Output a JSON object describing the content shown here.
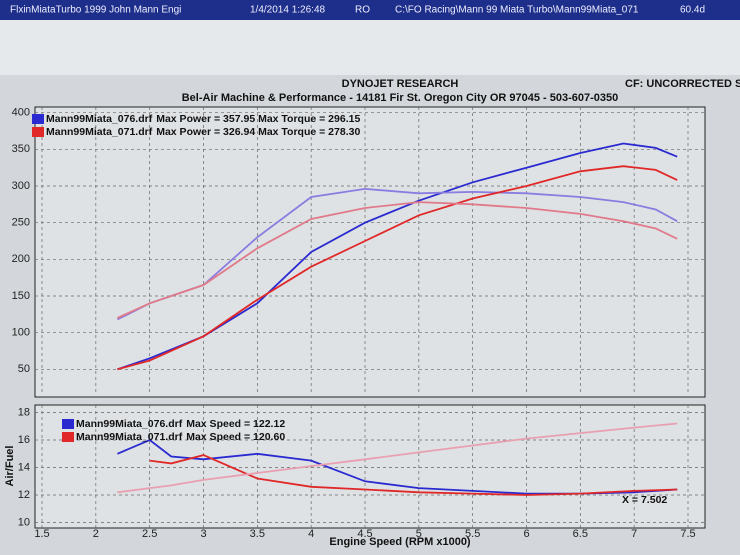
{
  "header": {
    "file_title": "FlxinMiataTurbo 1999 John Mann Engi",
    "timestamp": "1/4/2014 1:26:48",
    "flag": "RO",
    "path": "C:\\FO Racing\\Mann 99 Miata Turbo\\Mann99Miata_071",
    "duration": "60.4d",
    "company": "DYNOJET RESEARCH",
    "correction": "CF: UNCORRECTED  ST",
    "shop": "Bel-Air Machine & Performance - 14181 Fir St. Oregon City OR 97045 - 503-607-0350"
  },
  "chart_data": [
    {
      "type": "line",
      "xlim": [
        1.5,
        7.5
      ],
      "ylim": [
        15,
        405
      ],
      "yticks": [
        50,
        100,
        150,
        200,
        250,
        300,
        350,
        400
      ],
      "grid": true,
      "x": [
        2.2,
        2.5,
        3.0,
        3.5,
        4.0,
        4.5,
        5.0,
        5.5,
        6.0,
        6.5,
        6.9,
        7.2,
        7.4
      ],
      "series": [
        {
          "name": "Mann99Miata_076.drf",
          "legend_text": "Max Power = 357.95 Max Torque = 296.15",
          "color": "#2a2ad0",
          "values": [
            50,
            65,
            95,
            140,
            210,
            250,
            280,
            305,
            325,
            345,
            357.95,
            352,
            340
          ]
        },
        {
          "color": "#8a7ce0",
          "values": [
            118,
            140,
            165,
            230,
            285,
            296,
            290,
            292,
            290,
            285,
            278,
            268,
            252
          ]
        },
        {
          "name": "Mann99Miata_071.drf",
          "legend_text": "Max Power = 326.94 Max Torque = 278.30",
          "color": "#e02828",
          "values": [
            50,
            62,
            95,
            145,
            190,
            225,
            260,
            283,
            300,
            320,
            326.94,
            322,
            308
          ]
        },
        {
          "color": "#e07a8a",
          "values": [
            120,
            140,
            165,
            215,
            255,
            270,
            278,
            275,
            270,
            262,
            252,
            242,
            228
          ]
        }
      ]
    },
    {
      "type": "line",
      "xlim": [
        1.5,
        7.5
      ],
      "ylim": [
        9.6,
        18.4
      ],
      "yticks": [
        10,
        12,
        14,
        16,
        18
      ],
      "xticks": [
        1.5,
        2.0,
        2.5,
        3.0,
        3.5,
        4.0,
        4.5,
        5.0,
        5.5,
        6.0,
        6.5,
        7.0,
        7.5
      ],
      "grid": true,
      "x_label": "Engine Speed (RPM x1000)",
      "y_label": "Air/Fuel",
      "cursor_label": "X = 7.502",
      "x": [
        2.2,
        2.5,
        2.7,
        3.0,
        3.5,
        4.0,
        4.5,
        5.0,
        5.5,
        6.0,
        6.5,
        7.0,
        7.4
      ],
      "series": [
        {
          "name": "Mann99Miata_076.drf",
          "legend_text": "Max Speed = 122.12",
          "color": "#2a2ad0",
          "values": [
            15,
            16,
            14.8,
            14.6,
            15,
            14.5,
            13,
            12.5,
            12.3,
            12.1,
            12.1,
            12.2,
            12.4
          ]
        },
        {
          "name": "Mann99Miata_071.drf",
          "legend_text": "Max Speed = 120.60",
          "color": "#e02828",
          "values": [
            null,
            14.5,
            14.3,
            14.9,
            13.2,
            12.6,
            12.4,
            12.2,
            12.1,
            12.0,
            12.1,
            12.3,
            12.4
          ]
        },
        {
          "color": "#e8a0b0",
          "values": [
            12.2,
            12.5,
            12.7,
            13.1,
            13.6,
            14.1,
            14.6,
            15.1,
            15.6,
            16.1,
            16.5,
            16.9,
            17.2
          ]
        }
      ]
    }
  ]
}
